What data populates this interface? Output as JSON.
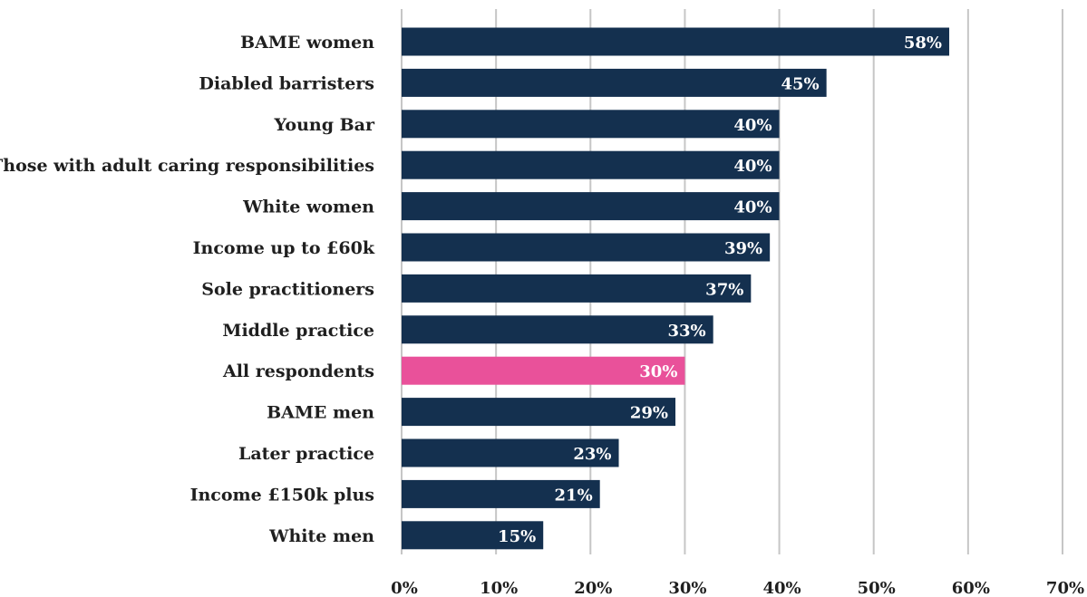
{
  "chart_data": {
    "type": "bar",
    "orientation": "horizontal",
    "title": "",
    "xlabel": "",
    "ylabel": "",
    "categories": [
      "BAME women",
      "Diabled barristers",
      "Young Bar",
      "Those with adult caring responsibilities",
      "White women",
      "Income up to £60k",
      "Sole practitioners",
      "Middle practice",
      "All respondents",
      "BAME men",
      "Later practice",
      "Income £150k plus",
      "White men"
    ],
    "values": [
      58,
      45,
      40,
      40,
      40,
      39,
      37,
      33,
      30,
      29,
      23,
      21,
      15
    ],
    "value_labels": [
      "58%",
      "45%",
      "40%",
      "40%",
      "40%",
      "39%",
      "37%",
      "33%",
      "30%",
      "29%",
      "23%",
      "21%",
      "15%"
    ],
    "highlight_category": "All respondents",
    "xlim": [
      0,
      70
    ],
    "xticks": [
      0,
      10,
      20,
      30,
      40,
      50,
      60,
      70
    ],
    "xtick_labels": [
      "0%",
      "10%",
      "20%",
      "30%",
      "40%",
      "50%",
      "60%",
      "70%"
    ],
    "grid": "vertical",
    "legend": "none",
    "colors": {
      "bar": "#14304f",
      "highlight": "#e9519a",
      "grid": "#c6c6c6",
      "text": "#1f1f1f",
      "value_text": "#ffffff"
    }
  }
}
